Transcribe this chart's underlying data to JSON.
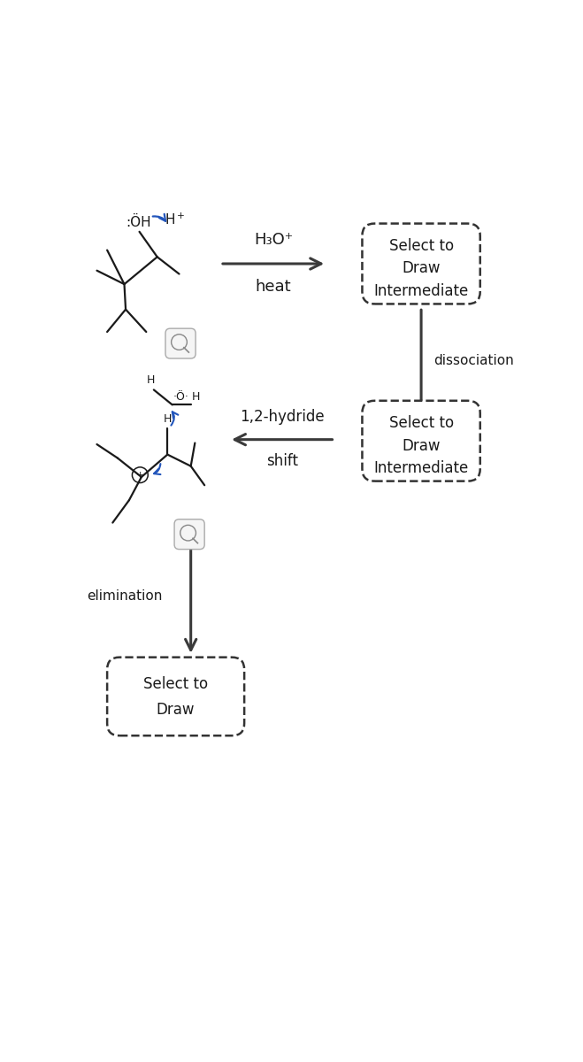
{
  "arrow_color": "#3a3a3a",
  "blue_color": "#2255bb",
  "mol_color": "#1a1a1a",
  "step1_reagent": [
    "H₃O⁺",
    "heat"
  ],
  "step1_box_text": [
    "Select to",
    "Draw",
    "Intermediate"
  ],
  "step2_label": "dissociation",
  "step3_reagent": [
    "1,2-hydride",
    "shift"
  ],
  "step3_box_text": [
    "Select to",
    "Draw",
    "Intermediate"
  ],
  "step4_label": "elimination",
  "step4_box_text": [
    "Select to",
    "Draw"
  ]
}
